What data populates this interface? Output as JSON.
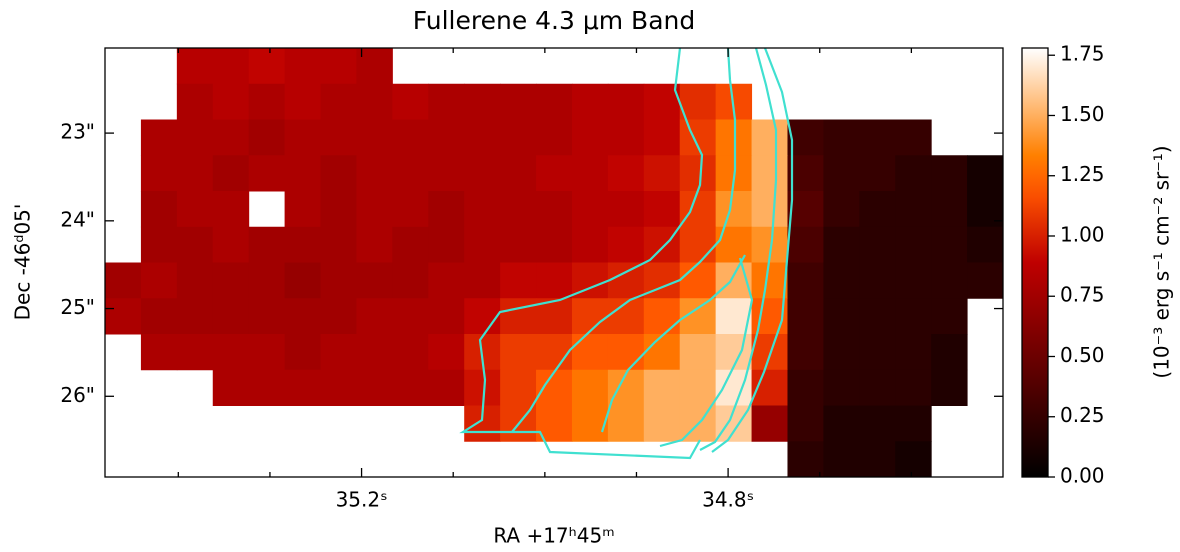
{
  "chart_data": {
    "type": "heatmap",
    "title": "Fullerene 4.3 μm Band",
    "xlabel": "RA +17ʰ45ᵐ",
    "ylabel": "Dec -46ᵈ05'",
    "colorbar_label": "(10⁻³ erg s⁻¹ cm⁻² sr⁻¹)",
    "colormap": "gist_heat",
    "xlim": [
      35.48,
      34.5
    ],
    "ylim": [
      22.03,
      26.92
    ],
    "xticks": [
      {
        "value": 35.2,
        "label": "35.2ˢ"
      },
      {
        "value": 34.8,
        "label": "34.8ˢ"
      }
    ],
    "xminorticks": [
      35.4,
      35.3,
      35.1,
      35.0,
      34.9,
      34.7,
      34.6
    ],
    "yticks": [
      {
        "value": 23,
        "label": "23\""
      },
      {
        "value": 24,
        "label": "24\""
      },
      {
        "value": 25,
        "label": "25\""
      },
      {
        "value": 26,
        "label": "26\""
      }
    ],
    "clim": [
      0,
      1.78
    ],
    "cticks": [
      {
        "value": 0,
        "label": "0.00"
      },
      {
        "value": 0.25,
        "label": "0.25"
      },
      {
        "value": 0.5,
        "label": "0.50"
      },
      {
        "value": 0.75,
        "label": "0.75"
      },
      {
        "value": 1,
        "label": "1.00"
      },
      {
        "value": 1.25,
        "label": "1.25"
      },
      {
        "value": 1.5,
        "label": "1.50"
      },
      {
        "value": 1.75,
        "label": "1.75"
      }
    ],
    "z": [
      [
        null,
        null,
        0.85,
        0.85,
        0.9,
        0.85,
        0.85,
        0.8,
        null,
        null,
        null,
        null,
        null,
        null,
        null,
        null,
        null,
        null,
        null,
        null,
        null,
        null,
        null,
        null,
        null
      ],
      [
        null,
        null,
        0.8,
        0.85,
        0.8,
        0.85,
        0.8,
        0.8,
        0.85,
        0.8,
        0.8,
        0.8,
        0.8,
        0.85,
        0.85,
        0.9,
        1.05,
        1.15,
        null,
        null,
        null,
        null,
        null,
        null,
        null
      ],
      [
        null,
        0.8,
        0.8,
        0.8,
        0.75,
        0.8,
        0.8,
        0.8,
        0.8,
        0.8,
        0.8,
        0.8,
        0.8,
        0.85,
        0.85,
        0.9,
        1.1,
        1.3,
        1.5,
        0.3,
        0.25,
        0.25,
        0.25,
        null,
        null
      ],
      [
        null,
        0.8,
        0.8,
        0.75,
        0.8,
        0.8,
        0.75,
        0.8,
        0.8,
        0.8,
        0.8,
        0.8,
        0.85,
        0.85,
        0.9,
        0.95,
        1.05,
        1.3,
        1.5,
        0.35,
        0.25,
        0.25,
        0.2,
        0.2,
        0.1
      ],
      [
        null,
        0.75,
        0.8,
        0.8,
        null,
        0.8,
        0.75,
        0.8,
        0.8,
        0.75,
        0.8,
        0.8,
        0.8,
        0.85,
        0.85,
        0.9,
        1.1,
        1.4,
        1.5,
        0.4,
        0.25,
        0.2,
        0.2,
        0.2,
        0.1
      ],
      [
        null,
        0.75,
        0.75,
        0.8,
        0.75,
        0.75,
        0.75,
        0.8,
        0.75,
        0.75,
        0.8,
        0.8,
        0.8,
        0.85,
        0.9,
        0.95,
        1.1,
        1.3,
        1.4,
        0.35,
        0.2,
        0.2,
        0.2,
        0.2,
        0.15
      ],
      [
        0.75,
        0.8,
        0.75,
        0.75,
        0.75,
        0.7,
        0.75,
        0.75,
        0.75,
        0.8,
        0.8,
        0.9,
        0.9,
        0.95,
        1.0,
        1.05,
        1.2,
        1.5,
        1.3,
        0.3,
        0.2,
        0.2,
        0.2,
        0.2,
        0.2
      ],
      [
        0.8,
        0.75,
        0.75,
        0.75,
        0.75,
        0.75,
        0.75,
        0.8,
        0.8,
        0.8,
        0.9,
        1.0,
        1.0,
        1.1,
        1.1,
        1.2,
        1.4,
        1.7,
        1.2,
        0.3,
        0.2,
        0.2,
        0.2,
        0.2,
        null
      ],
      [
        null,
        0.8,
        0.8,
        0.8,
        0.8,
        0.75,
        0.8,
        0.8,
        0.8,
        0.85,
        1.0,
        1.1,
        1.1,
        1.2,
        1.2,
        1.3,
        1.5,
        1.6,
        1.1,
        0.3,
        0.2,
        0.2,
        0.2,
        0.15,
        null
      ],
      [
        null,
        null,
        null,
        0.8,
        0.8,
        0.8,
        0.8,
        0.8,
        0.8,
        0.8,
        0.95,
        1.1,
        1.2,
        1.3,
        1.4,
        1.5,
        1.5,
        1.7,
        1.0,
        0.25,
        0.2,
        0.2,
        0.2,
        0.15,
        null
      ],
      [
        null,
        null,
        null,
        null,
        null,
        null,
        null,
        null,
        null,
        null,
        1.0,
        1.1,
        1.2,
        1.3,
        1.4,
        1.5,
        1.5,
        1.6,
        0.7,
        0.25,
        0.15,
        0.15,
        0.15,
        null,
        null
      ],
      [
        null,
        null,
        null,
        null,
        null,
        null,
        null,
        null,
        null,
        null,
        null,
        null,
        null,
        null,
        null,
        null,
        null,
        null,
        null,
        0.2,
        0.15,
        0.15,
        0.1,
        null,
        null
      ]
    ]
  }
}
